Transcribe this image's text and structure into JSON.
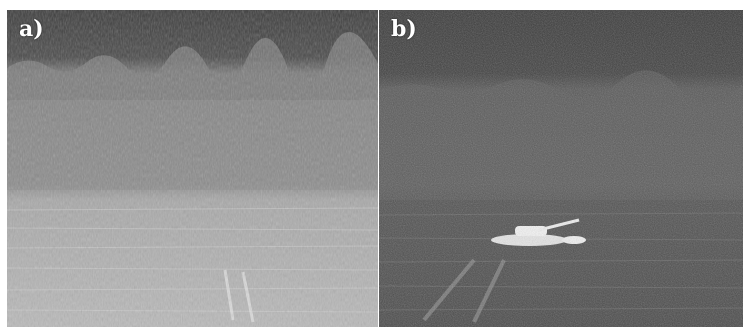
{
  "panels": [
    {
      "label": "a)",
      "description_icon": "thermal-image-fog"
    },
    {
      "label": "b)",
      "description_icon": "thermal-image-vehicle"
    }
  ],
  "colors": {
    "sky_a": "#3e3e3e",
    "fog_a": "#8c8c8c",
    "ground_a": "#b5b5b5",
    "sky_b": "#3a3a3a",
    "trees_b": "#5c5c5c",
    "ground_b": "#4b4b4b",
    "hot_spot": "#f2f2f2"
  }
}
